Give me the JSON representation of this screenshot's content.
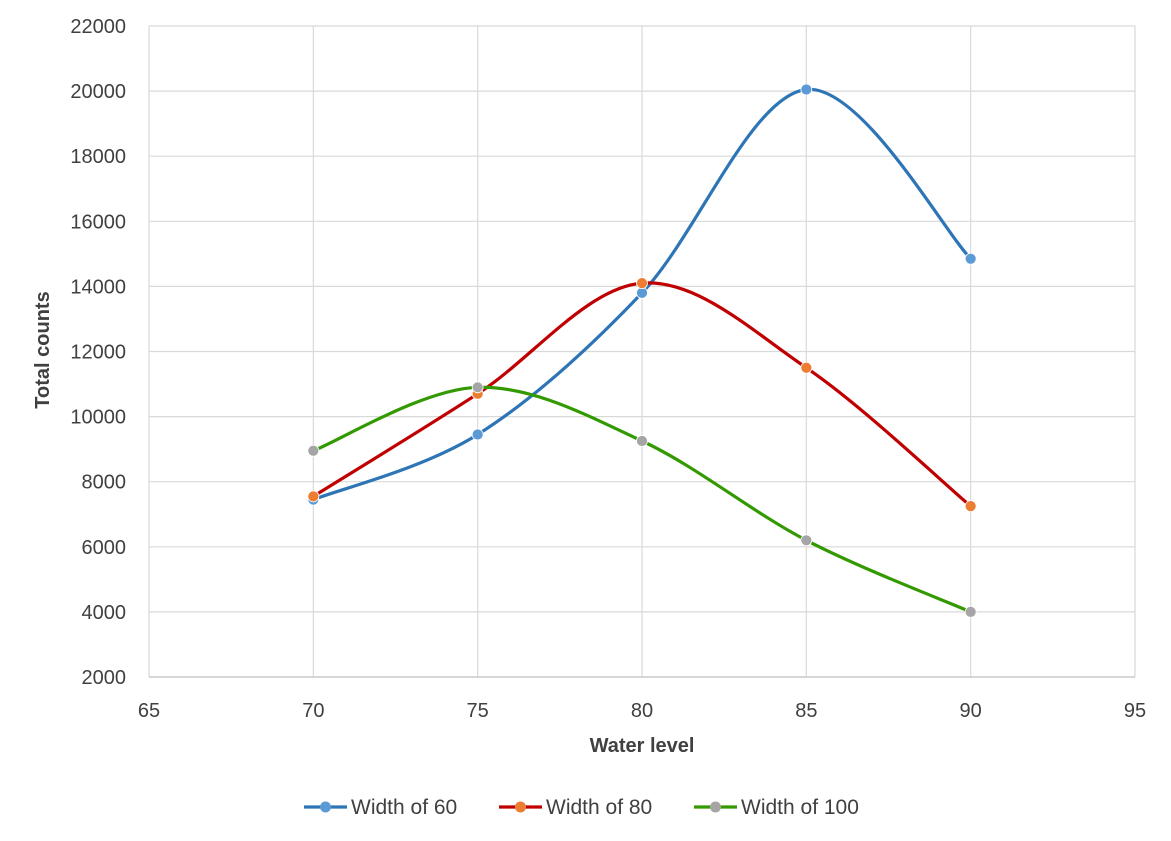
{
  "chart_data": {
    "type": "line",
    "smooth": true,
    "xlabel": "Water level",
    "ylabel": "Total counts",
    "xlim": [
      65,
      95
    ],
    "ylim": [
      2000,
      22000
    ],
    "x_ticks": [
      "65",
      "70",
      "75",
      "80",
      "85",
      "90",
      "95"
    ],
    "y_ticks": [
      "2000",
      "4000",
      "6000",
      "8000",
      "10000",
      "12000",
      "14000",
      "16000",
      "18000",
      "20000",
      "22000"
    ],
    "grid": true,
    "legend_position": "bottom",
    "x": [
      70,
      75,
      80,
      85,
      90
    ],
    "series": [
      {
        "name": "Width of 60",
        "values": [
          7450,
          9450,
          13800,
          20050,
          14850
        ],
        "line_color": "#2E75B6",
        "marker_color": "#5B9BD5"
      },
      {
        "name": "Width of 80",
        "values": [
          7550,
          10700,
          14100,
          11500,
          7250
        ],
        "line_color": "#C00000",
        "marker_color": "#ED7D31"
      },
      {
        "name": "Width of 100",
        "values": [
          8950,
          10900,
          9250,
          6200,
          4000
        ],
        "line_color": "#339900",
        "marker_color": "#A5A5A5"
      }
    ],
    "colors": {
      "grid": "#D9D9D9",
      "axis": "#BFBFBF",
      "text": "#404040"
    }
  }
}
